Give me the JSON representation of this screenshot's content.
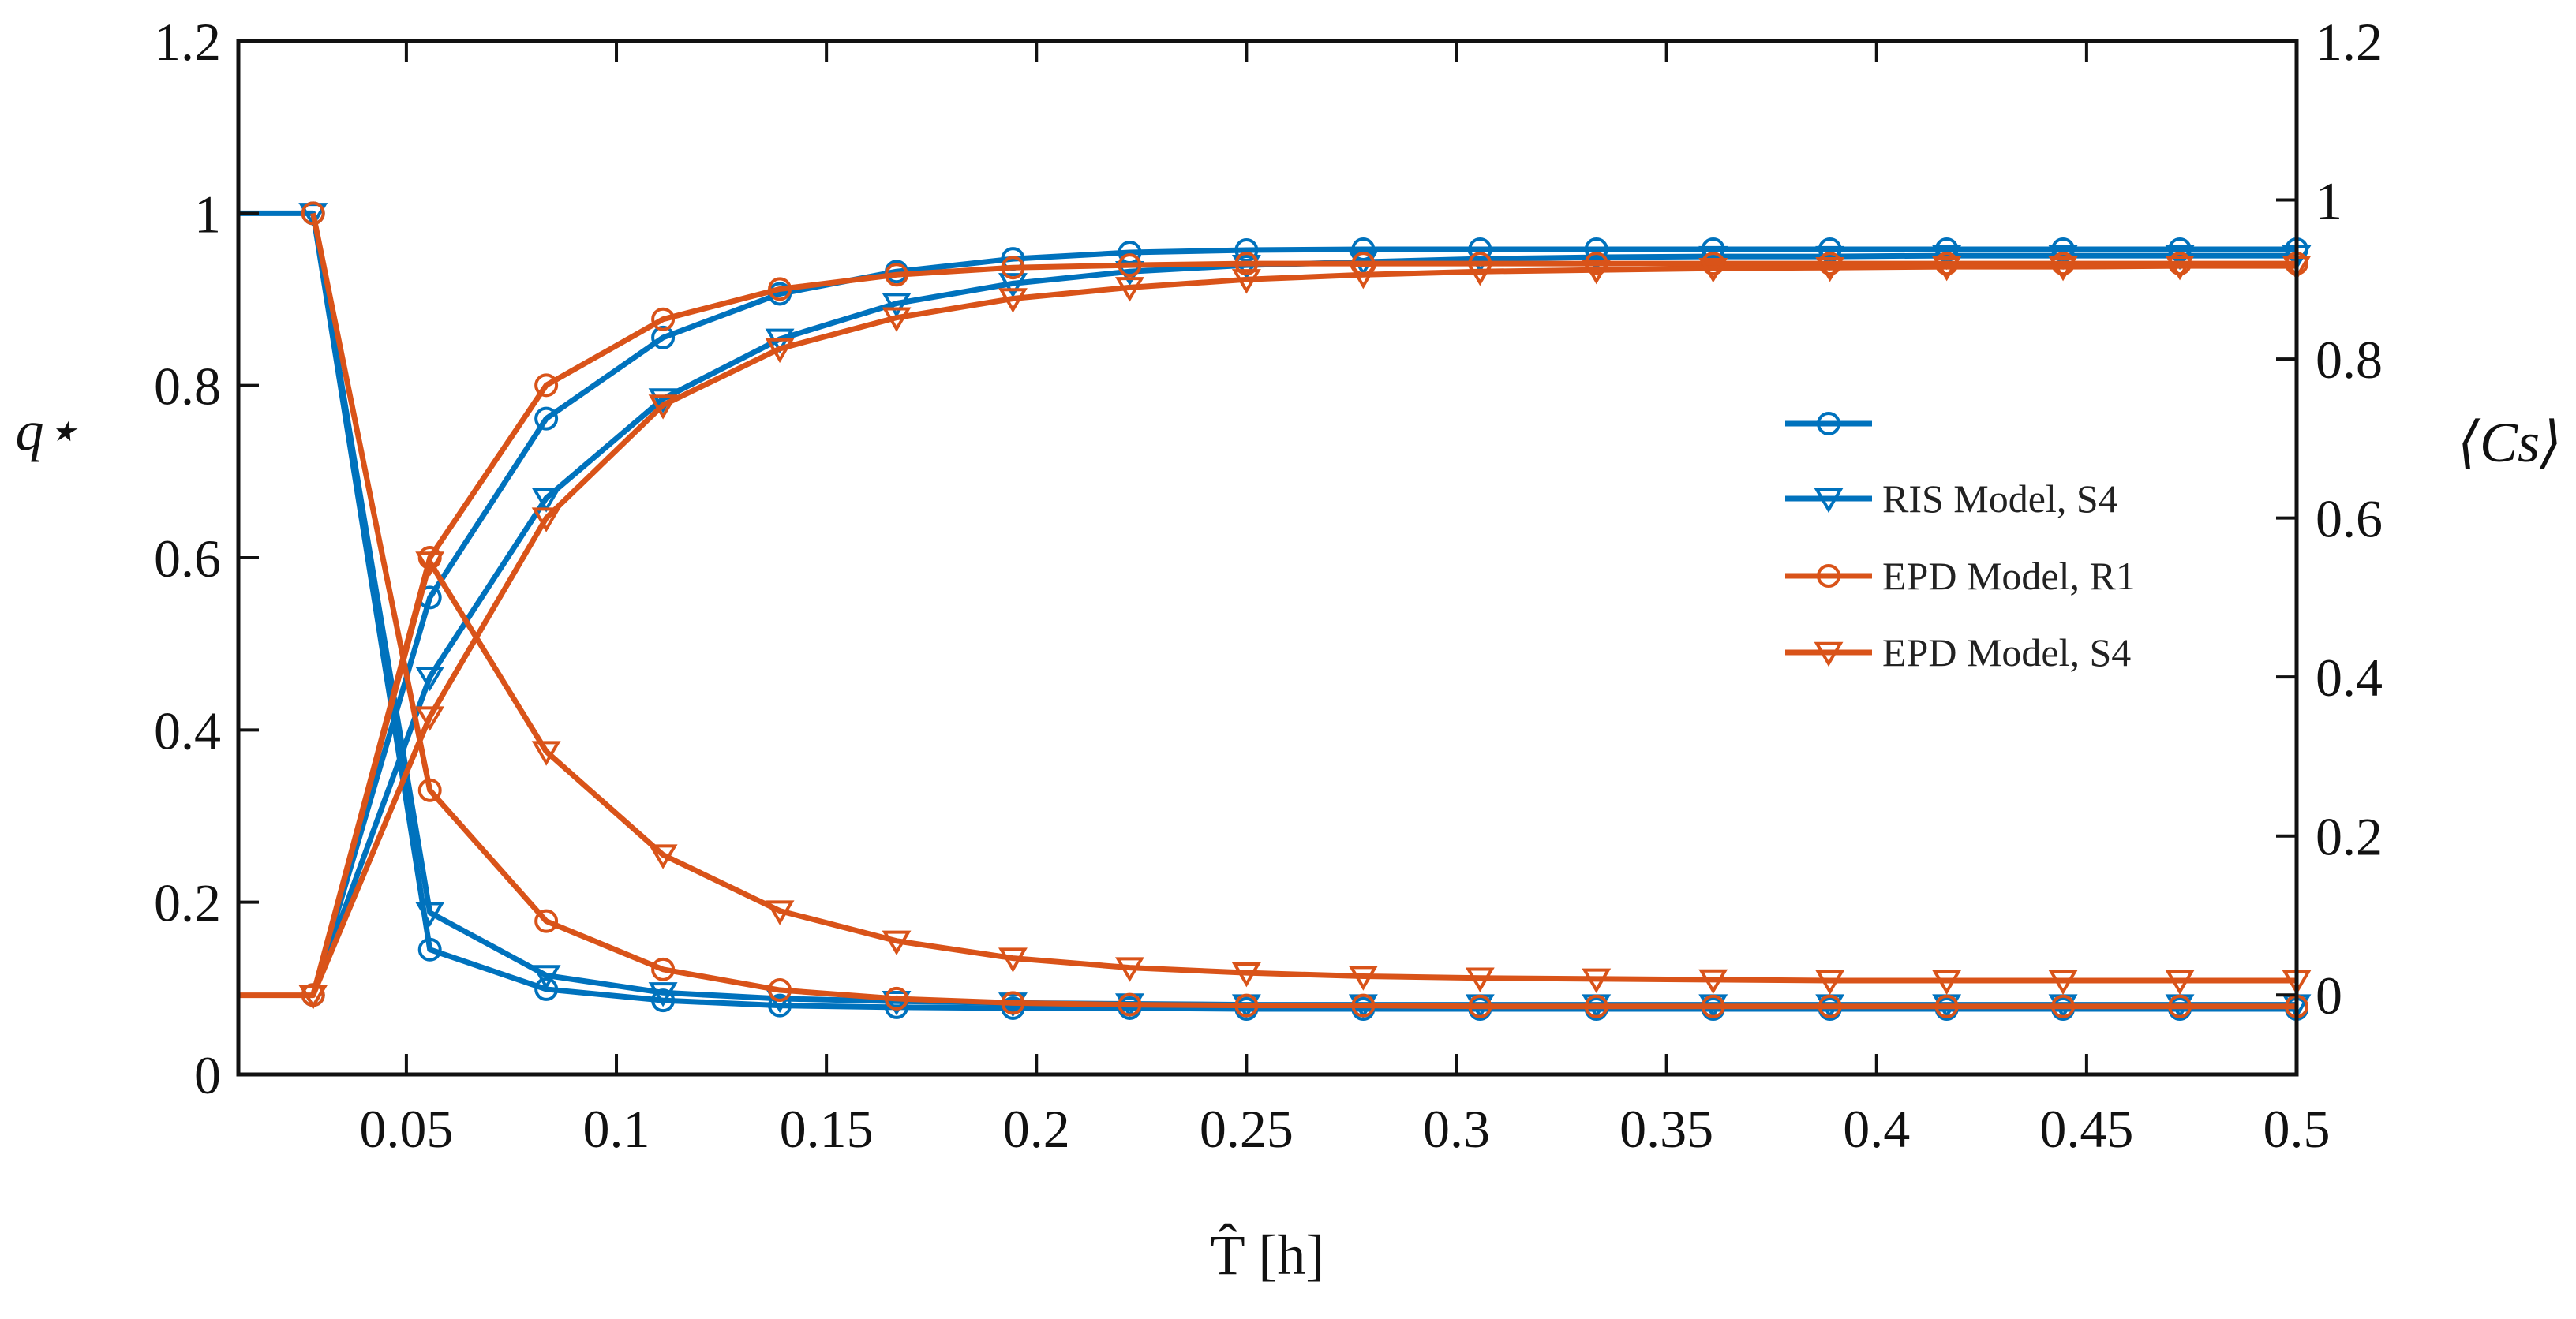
{
  "chart_data": {
    "type": "line",
    "title": "",
    "xlabel": "T̂ [h]",
    "ylabel_left": "q⋆",
    "ylabel_right": "⟨Cs⟩",
    "xlim": [
      0.01,
      0.5
    ],
    "ylim_left": [
      0,
      1.2
    ],
    "ylim_right": [
      -0.1,
      1.2
    ],
    "grid": false,
    "legend_position": "center-right",
    "x_ticks": [
      0.05,
      0.1,
      0.15,
      0.2,
      0.25,
      0.3,
      0.35,
      0.4,
      0.45,
      0.5
    ],
    "x_tick_labels": [
      "0.05",
      "0.1",
      "0.15",
      "0.2",
      "0.25",
      "0.3",
      "0.35",
      "0.4",
      "0.45",
      "0.5"
    ],
    "y_left_ticks": [
      0,
      0.2,
      0.4,
      0.6,
      0.8,
      1,
      1.2
    ],
    "y_left_tick_labels": [
      "0",
      "0.2",
      "0.4",
      "0.6",
      "0.8",
      "1",
      "1.2"
    ],
    "y_right_ticks": [
      0,
      0.2,
      0.4,
      0.6,
      0.8,
      1,
      1.2
    ],
    "y_right_tick_labels": [
      "0",
      "0.2",
      "0.4",
      "0.6",
      "0.8",
      "1",
      "1.2"
    ],
    "x": [
      0.0278,
      0.0556,
      0.0833,
      0.1111,
      0.1389,
      0.1667,
      0.1944,
      0.2222,
      0.25,
      0.2778,
      0.3056,
      0.3333,
      0.3611,
      0.3889,
      0.4167,
      0.4444,
      0.4722,
      0.5
    ],
    "series": [
      {
        "name": "",
        "legend_label": "",
        "color": "#0072BD",
        "marker": "circle",
        "axis": "left",
        "lead_x": 0.01,
        "lead_y": 1.0,
        "values": [
          1.0,
          0.145,
          0.099,
          0.086,
          0.08,
          0.078,
          0.077,
          0.077,
          0.076,
          0.076,
          0.076,
          0.076,
          0.076,
          0.076,
          0.076,
          0.076,
          0.076,
          0.076
        ]
      },
      {
        "name": "",
        "legend_label": "",
        "color": "#0072BD",
        "marker": "circle",
        "axis": "right",
        "values": [
          0.0,
          0.5,
          0.725,
          0.827,
          0.882,
          0.91,
          0.926,
          0.934,
          0.937,
          0.938,
          0.938,
          0.938,
          0.938,
          0.938,
          0.938,
          0.938,
          0.938,
          0.938
        ]
      },
      {
        "name": "RIS Model, S4",
        "legend_label": "RIS Model, S4",
        "color": "#0072BD",
        "marker": "triangle-down",
        "axis": "left",
        "values": [
          1.0,
          0.188,
          0.115,
          0.095,
          0.088,
          0.085,
          0.083,
          0.082,
          0.081,
          0.081,
          0.081,
          0.081,
          0.081,
          0.081,
          0.081,
          0.081,
          0.081,
          0.081
        ]
      },
      {
        "name": "RIS Model, S4",
        "legend_label": "",
        "color": "#0072BD",
        "marker": "triangle-down",
        "axis": "right",
        "values": [
          0.0,
          0.4,
          0.625,
          0.75,
          0.825,
          0.87,
          0.895,
          0.91,
          0.918,
          0.922,
          0.926,
          0.928,
          0.929,
          0.929,
          0.93,
          0.93,
          0.93,
          0.93
        ]
      },
      {
        "name": "EPD Model, R1",
        "legend_label": "EPD Model, R1",
        "color": "#D95319",
        "marker": "circle",
        "axis": "left",
        "values": [
          1.0,
          0.33,
          0.178,
          0.122,
          0.098,
          0.088,
          0.083,
          0.081,
          0.08,
          0.08,
          0.079,
          0.079,
          0.079,
          0.079,
          0.079,
          0.079,
          0.079,
          0.079
        ]
      },
      {
        "name": "EPD Model, R1",
        "legend_label": "",
        "color": "#D95319",
        "marker": "circle",
        "axis": "right",
        "values": [
          0.0,
          0.55,
          0.767,
          0.85,
          0.888,
          0.906,
          0.915,
          0.918,
          0.92,
          0.92,
          0.92,
          0.92,
          0.92,
          0.92,
          0.92,
          0.92,
          0.92,
          0.92
        ]
      },
      {
        "name": "EPD Model, S4",
        "legend_label": "EPD Model, S4",
        "color": "#D95319",
        "marker": "triangle-down",
        "axis": "left",
        "lead_x": 0.01,
        "lead_y": 0.092,
        "values": [
          0.092,
          0.595,
          0.375,
          0.255,
          0.19,
          0.155,
          0.135,
          0.124,
          0.118,
          0.114,
          0.112,
          0.111,
          0.11,
          0.109,
          0.109,
          0.109,
          0.109,
          0.109
        ]
      },
      {
        "name": "EPD Model, S4",
        "legend_label": "",
        "color": "#D95319",
        "marker": "triangle-down",
        "axis": "right",
        "values": [
          0.0,
          0.35,
          0.6,
          0.742,
          0.813,
          0.852,
          0.876,
          0.89,
          0.9,
          0.906,
          0.91,
          0.912,
          0.914,
          0.915,
          0.916,
          0.916,
          0.917,
          0.917
        ]
      }
    ]
  }
}
